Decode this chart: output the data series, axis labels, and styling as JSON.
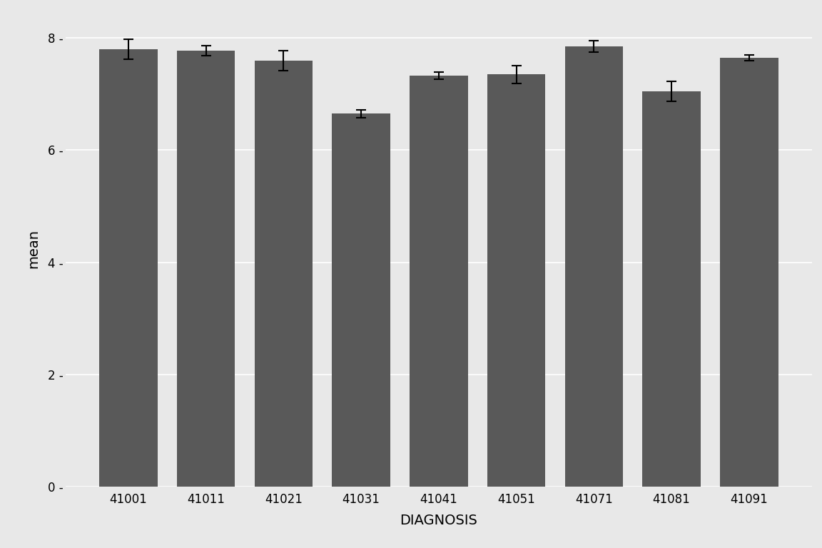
{
  "categories": [
    "41001",
    "41011",
    "41021",
    "41031",
    "41041",
    "41051",
    "41071",
    "41081",
    "41091"
  ],
  "means": [
    7.8,
    7.77,
    7.6,
    6.65,
    7.33,
    7.35,
    7.85,
    7.05,
    7.65
  ],
  "errors": [
    0.18,
    0.09,
    0.18,
    0.07,
    0.06,
    0.16,
    0.1,
    0.18,
    0.05
  ],
  "bar_color": "#595959",
  "fig_background": "#e8e8e8",
  "panel_background": "#e8e8e8",
  "grid_color": "#ffffff",
  "xlabel": "DIAGNOSIS",
  "ylabel": "mean",
  "ylim": [
    0,
    8.5
  ],
  "yticks": [
    0,
    2,
    4,
    6,
    8
  ],
  "axis_label_fontsize": 14,
  "tick_fontsize": 12,
  "bar_width": 0.75,
  "capsize": 5,
  "elinewidth": 1.5,
  "capthick": 1.5
}
